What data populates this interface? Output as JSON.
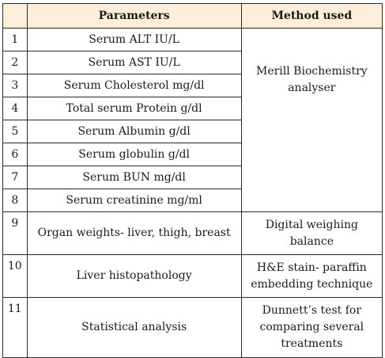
{
  "table": {
    "headers": [
      "",
      "Parameters",
      "Method used"
    ],
    "rows": [
      {
        "num": "1",
        "param": "Serum ALT IU/L"
      },
      {
        "num": "2",
        "param": "Serum AST IU/L"
      },
      {
        "num": "3",
        "param": "Serum Cholesterol mg/dl"
      },
      {
        "num": "4",
        "param": "Total serum Protein g/dl"
      },
      {
        "num": "5",
        "param": "Serum Albumin g/dl"
      },
      {
        "num": "6",
        "param": "Serum globulin g/dl"
      },
      {
        "num": "7",
        "param": "Serum BUN mg/dl"
      },
      {
        "num": "8",
        "param": "Serum creatinine mg/ml"
      },
      {
        "num": "9",
        "param": "Organ weights- liver, thigh, breast",
        "method": "Digital weighing balance"
      },
      {
        "num": "10",
        "param": "Liver histopathology",
        "method": "H&E stain- paraffin embedding technique"
      },
      {
        "num": "11",
        "param": "Statistical analysis",
        "method": "Dunnett’s test for comparing several treatments"
      }
    ],
    "merged_method_rows_1_8": "Merill Biochemistry analyser"
  },
  "colors": {
    "header_bg": "#fdeed9",
    "border": "#2a2a2a"
  }
}
